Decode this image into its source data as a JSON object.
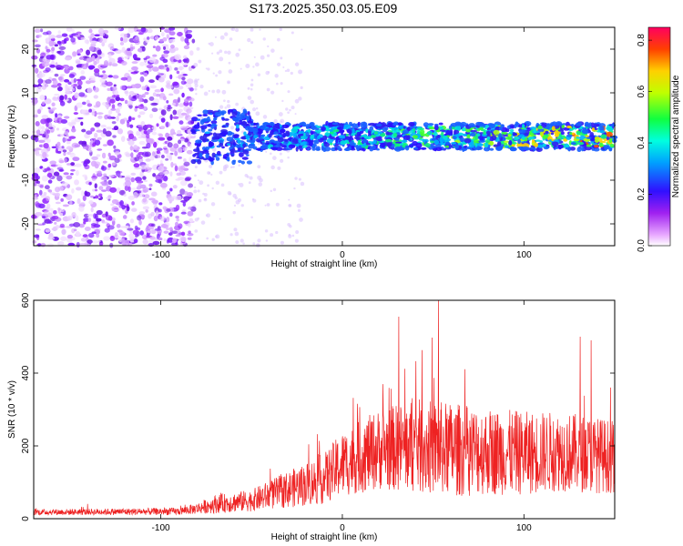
{
  "title": "S173.2025.350.03.05.E09",
  "chart_data": [
    {
      "type": "heatmap",
      "xlabel": "Height of straight line (km)",
      "ylabel": "Frequency (Hz)",
      "xlim": [
        -170,
        150
      ],
      "ylim": [
        -25,
        25
      ],
      "xticks": [
        -100,
        0,
        100
      ],
      "yticks": [
        -20,
        -10,
        0,
        10,
        20
      ],
      "description_values": {
        "noise_region_x": [
          -170,
          -82
        ],
        "signal_band_center_hz": 0,
        "signal_band_halfwidth_hz": 3
      },
      "colorbar": {
        "label": "Normalized spectral amplitude",
        "range": [
          0.0,
          0.85
        ],
        "ticks": [
          0.0,
          0.2,
          0.4,
          0.6,
          0.8
        ],
        "tick_labels": [
          "0.0",
          "0.2",
          "0.4",
          "0.6",
          "0.8"
        ]
      }
    },
    {
      "type": "line",
      "xlabel": "Height of straight line (km)",
      "ylabel": "SNR (10 * v/v)",
      "xlim": [
        -170,
        150
      ],
      "ylim": [
        0,
        600
      ],
      "xticks": [
        -100,
        0,
        100
      ],
      "yticks": [
        0,
        200,
        400,
        600
      ],
      "color": "#ee2222",
      "envelope": {
        "x": [
          -170,
          -90,
          -80,
          -70,
          -50,
          -30,
          -10,
          0,
          20,
          40,
          60,
          80,
          100,
          120,
          140,
          150
        ],
        "mean": [
          18,
          20,
          28,
          40,
          50,
          80,
          110,
          150,
          190,
          200,
          190,
          185,
          180,
          185,
          175,
          170
        ],
        "spread": [
          8,
          10,
          15,
          25,
          30,
          50,
          70,
          90,
          110,
          130,
          130,
          120,
          115,
          110,
          105,
          100
        ]
      },
      "peaks": [
        {
          "x": 31,
          "y": 555
        },
        {
          "x": 53,
          "y": 600
        },
        {
          "x": 131,
          "y": 500
        },
        {
          "x": 137,
          "y": 490
        }
      ]
    }
  ]
}
